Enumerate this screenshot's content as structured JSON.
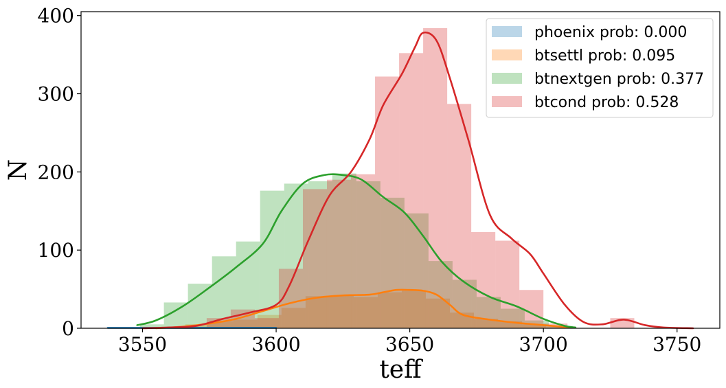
{
  "chart_data": {
    "type": "bar",
    "title": "",
    "xlabel": "teff",
    "ylabel": "N",
    "xlim": [
      3527,
      3766
    ],
    "ylim": [
      0,
      405
    ],
    "xticks": [
      3550,
      3600,
      3650,
      3700,
      3750
    ],
    "yticks": [
      0,
      100,
      200,
      300,
      400
    ],
    "grid": false,
    "legend_position": "top-right",
    "colors": {
      "phoenix": "#1f77b4",
      "btsettl": "#ff7f0e",
      "btnextgen": "#2ca02c",
      "btcond": "#d62728"
    },
    "series": [
      {
        "name": "phoenix prob: 0.000",
        "key": "phoenix",
        "color": "#1f77b4",
        "hist_bins": [
          [
            3537,
            3592,
            1
          ]
        ],
        "kde_x": [
          3537,
          3550,
          3570,
          3590,
          3600
        ],
        "kde_y": [
          0.5,
          0.5,
          0.5,
          0.5,
          0.5
        ]
      },
      {
        "name": "btsettl prob: 0.095",
        "key": "btsettl",
        "color": "#ff7f0e",
        "hist_bins": [
          [
            3557,
            3566,
            2
          ],
          [
            3566,
            3575,
            5
          ],
          [
            3575,
            3584,
            9
          ],
          [
            3584,
            3593,
            11
          ],
          [
            3593,
            3602,
            17
          ],
          [
            3602,
            3611,
            26
          ],
          [
            3611,
            3620,
            41
          ],
          [
            3620,
            3629,
            42
          ],
          [
            3629,
            3638,
            40
          ],
          [
            3638,
            3647,
            46
          ],
          [
            3647,
            3656,
            48
          ],
          [
            3656,
            3665,
            38
          ],
          [
            3665,
            3674,
            20
          ],
          [
            3674,
            3683,
            12
          ],
          [
            3683,
            3692,
            9
          ],
          [
            3692,
            3701,
            5
          ],
          [
            3701,
            3710,
            1
          ]
        ],
        "kde_x": [
          3555,
          3565,
          3575,
          3585,
          3595,
          3605,
          3615,
          3625,
          3635,
          3640,
          3645,
          3650,
          3655,
          3660,
          3665,
          3670,
          3680,
          3690,
          3700,
          3710
        ],
        "kde_y": [
          0,
          2,
          6,
          12,
          22,
          32,
          39,
          42,
          43,
          46,
          49,
          49,
          48,
          43,
          30,
          17,
          11,
          7,
          4,
          1
        ]
      },
      {
        "name": "btnextgen prob: 0.377",
        "key": "btnextgen",
        "color": "#2ca02c",
        "hist_bins": [
          [
            3549,
            3558,
            5
          ],
          [
            3558,
            3567,
            33
          ],
          [
            3567,
            3576,
            57
          ],
          [
            3576,
            3585,
            92
          ],
          [
            3585,
            3594,
            111
          ],
          [
            3594,
            3603,
            176
          ],
          [
            3603,
            3612,
            185
          ],
          [
            3612,
            3621,
            188
          ],
          [
            3621,
            3630,
            198
          ],
          [
            3630,
            3639,
            188
          ],
          [
            3639,
            3648,
            167
          ],
          [
            3648,
            3657,
            147
          ],
          [
            3657,
            3666,
            86
          ],
          [
            3666,
            3675,
            62
          ],
          [
            3675,
            3684,
            40
          ],
          [
            3684,
            3693,
            25
          ],
          [
            3693,
            3702,
            10
          ],
          [
            3702,
            3711,
            3
          ]
        ],
        "kde_x": [
          3548,
          3555,
          3565,
          3575,
          3585,
          3595,
          3602,
          3610,
          3618,
          3625,
          3632,
          3640,
          3648,
          3655,
          3662,
          3670,
          3680,
          3690,
          3700,
          3708,
          3712
        ],
        "kde_y": [
          4,
          10,
          28,
          52,
          78,
          108,
          150,
          185,
          196,
          196,
          190,
          168,
          148,
          118,
          85,
          60,
          40,
          28,
          12,
          3,
          1
        ]
      },
      {
        "name": "btcond prob: 0.528",
        "key": "btcond",
        "color": "#d62728",
        "hist_bins": [
          [
            3565,
            3574,
            1
          ],
          [
            3574,
            3583,
            13
          ],
          [
            3583,
            3592,
            24
          ],
          [
            3592,
            3601,
            13
          ],
          [
            3601,
            3610,
            76
          ],
          [
            3610,
            3619,
            178
          ],
          [
            3619,
            3628,
            190
          ],
          [
            3628,
            3637,
            197
          ],
          [
            3637,
            3646,
            322
          ],
          [
            3646,
            3655,
            352
          ],
          [
            3655,
            3664,
            384
          ],
          [
            3664,
            3673,
            287
          ],
          [
            3673,
            3682,
            123
          ],
          [
            3682,
            3691,
            112
          ],
          [
            3691,
            3700,
            49
          ],
          [
            3700,
            3709,
            6
          ],
          [
            3725,
            3734,
            13
          ]
        ],
        "kde_x": [
          3550,
          3560,
          3570,
          3580,
          3590,
          3600,
          3605,
          3612,
          3620,
          3628,
          3635,
          3640,
          3647,
          3652,
          3655,
          3660,
          3665,
          3672,
          3680,
          3688,
          3695,
          3700,
          3708,
          3715,
          3722,
          3730,
          3738,
          3745,
          3756
        ],
        "kde_y": [
          0,
          1,
          3,
          12,
          20,
          30,
          55,
          112,
          170,
          200,
          242,
          285,
          325,
          360,
          378,
          368,
          320,
          240,
          145,
          115,
          95,
          70,
          30,
          8,
          5,
          11,
          4,
          1,
          0
        ]
      }
    ]
  }
}
